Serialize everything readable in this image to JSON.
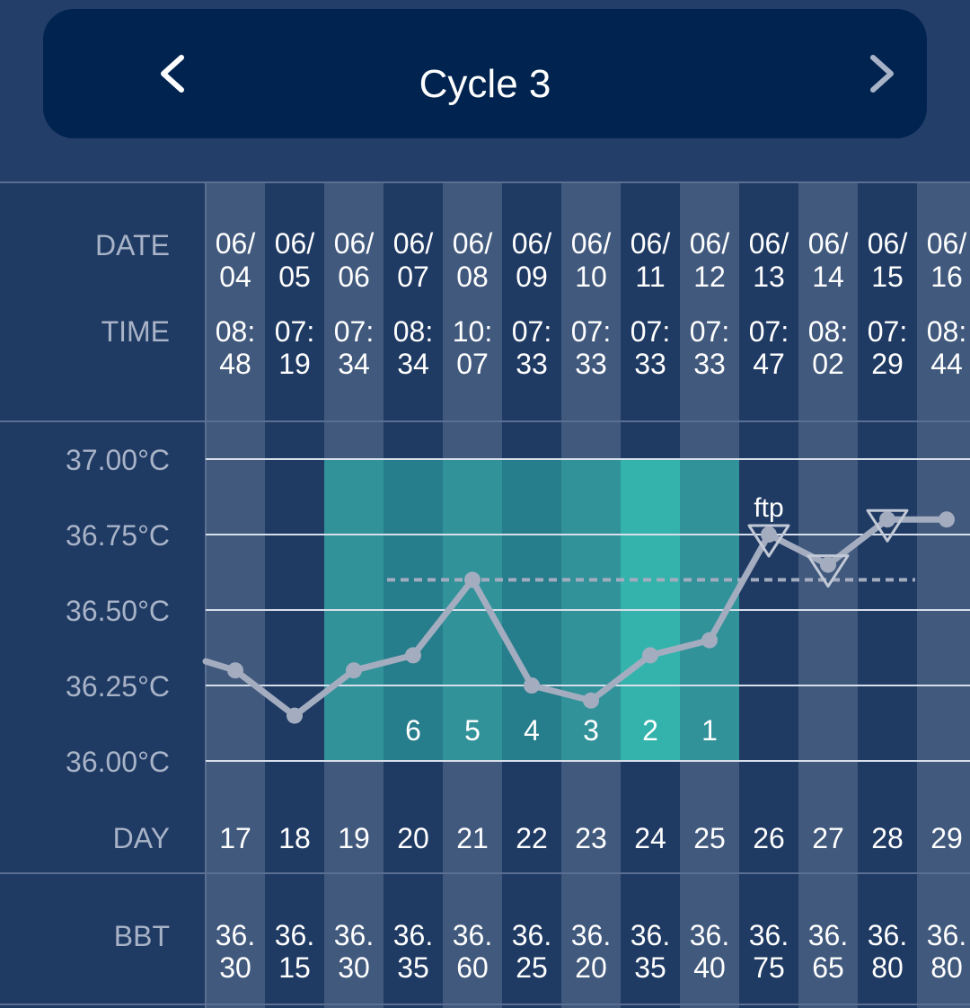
{
  "header": {
    "title": "Cycle 3",
    "prev_icon": "chevron-left-icon",
    "next_icon": "chevron-right-icon"
  },
  "colors": {
    "background": "#233f69",
    "header_bg": "#00234f",
    "column_light": "#41597d",
    "column_dark": "#1f3a63",
    "fertile_window": "#2ba7a4",
    "fertile_peak": "#34b3ad",
    "line": "#a4adc0",
    "coverline": "#a4adc0",
    "label_gray": "#a8b3c7",
    "value_white": "#ffffff"
  },
  "row_labels": {
    "date": "DATE",
    "time": "TIME",
    "day": "DAY",
    "bbt": "BBT"
  },
  "chart_data": {
    "type": "line",
    "y_unit": "°C",
    "y_ticks": [
      "37.00°C",
      "36.75°C",
      "36.50°C",
      "36.25°C",
      "36.00°C"
    ],
    "ylim": [
      36.0,
      37.0
    ],
    "grid": true,
    "days": [
      17,
      18,
      19,
      20,
      21,
      22,
      23,
      24,
      25,
      26,
      27,
      28,
      29
    ],
    "dates": [
      "06/04",
      "06/05",
      "06/06",
      "06/07",
      "06/08",
      "06/09",
      "06/10",
      "06/11",
      "06/12",
      "06/13",
      "06/14",
      "06/15",
      "06/16"
    ],
    "times": [
      "08:48",
      "07:19",
      "07:34",
      "08:34",
      "10:07",
      "07:33",
      "07:33",
      "07:33",
      "07:33",
      "07:47",
      "08:02",
      "07:29",
      "08:44"
    ],
    "bbt": [
      36.3,
      36.15,
      36.3,
      36.35,
      36.6,
      36.25,
      36.2,
      36.35,
      36.4,
      36.75,
      36.65,
      36.8,
      36.8
    ],
    "bbt_labels": [
      "36.30",
      "36.15",
      "36.30",
      "36.35",
      "36.60",
      "36.25",
      "36.20",
      "36.35",
      "36.40",
      "36.75",
      "36.65",
      "36.80",
      "36.80"
    ],
    "prev_point": 36.33,
    "coverline": 36.6,
    "fertile_window": {
      "days": [
        19,
        20,
        21,
        22,
        23,
        24,
        25
      ],
      "countdown": [
        "",
        "6",
        "5",
        "4",
        "3",
        "2",
        "1"
      ],
      "peak_day": 24
    },
    "high_temp_markers": [
      {
        "day": 26,
        "label": "ftp"
      },
      {
        "day": 27,
        "label": ""
      },
      {
        "day": 28,
        "label": ""
      }
    ]
  }
}
